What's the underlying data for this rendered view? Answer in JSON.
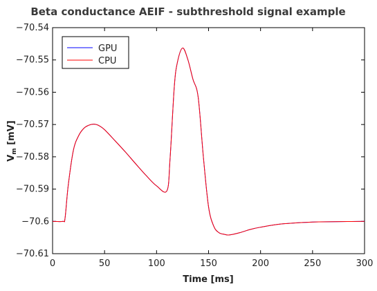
{
  "chart_data": {
    "type": "line",
    "title": "Beta conductance AEIF - subthreshold signal example",
    "xlabel": "Time [ms]",
    "ylabel": "V_m [mV]",
    "xlim": [
      0,
      300
    ],
    "ylim": [
      -70.61,
      -70.54
    ],
    "xticks": [
      0,
      50,
      100,
      150,
      200,
      250,
      300
    ],
    "yticks": [
      -70.54,
      -70.55,
      -70.56,
      -70.57,
      -70.58,
      -70.59,
      -70.6,
      -70.61
    ],
    "xtick_labels": [
      "0",
      "50",
      "100",
      "150",
      "200",
      "250",
      "300"
    ],
    "ytick_labels": [
      "-70.54",
      "-70.55",
      "-70.56",
      "-70.57",
      "-70.58",
      "-70.59",
      "-70.6",
      "-70.61"
    ],
    "grid": false,
    "legend_position": "top-left",
    "x": [
      0,
      10,
      12,
      15,
      20,
      25,
      30,
      35,
      40,
      45,
      50,
      60,
      70,
      80,
      90,
      100,
      110,
      113,
      117,
      120,
      125,
      130,
      135,
      140,
      145,
      150,
      155,
      160,
      165,
      170,
      180,
      190,
      200,
      220,
      250,
      270,
      300
    ],
    "series": [
      {
        "name": "GPU",
        "color": "#0000ff",
        "values": [
          -70.6,
          -70.6,
          -70.599,
          -70.589,
          -70.578,
          -70.5735,
          -70.5712,
          -70.5702,
          -70.5699,
          -70.5704,
          -70.5716,
          -70.575,
          -70.5785,
          -70.5822,
          -70.5858,
          -70.589,
          -70.5905,
          -70.5805,
          -70.5585,
          -70.5508,
          -70.5463,
          -70.5498,
          -70.556,
          -70.5615,
          -70.58,
          -70.5955,
          -70.6015,
          -70.6035,
          -70.604,
          -70.6042,
          -70.6035,
          -70.6025,
          -70.6018,
          -70.6008,
          -70.6002,
          -70.6001,
          -70.6
        ]
      },
      {
        "name": "CPU",
        "color": "#ff0000",
        "values": [
          -70.6,
          -70.6,
          -70.599,
          -70.589,
          -70.578,
          -70.5735,
          -70.5712,
          -70.5702,
          -70.5699,
          -70.5704,
          -70.5716,
          -70.575,
          -70.5785,
          -70.5822,
          -70.5858,
          -70.589,
          -70.5905,
          -70.5805,
          -70.5585,
          -70.5508,
          -70.5463,
          -70.5498,
          -70.556,
          -70.5615,
          -70.58,
          -70.5955,
          -70.6015,
          -70.6035,
          -70.604,
          -70.6042,
          -70.6035,
          -70.6025,
          -70.6018,
          -70.6008,
          -70.6002,
          -70.6001,
          -70.6
        ]
      }
    ]
  }
}
